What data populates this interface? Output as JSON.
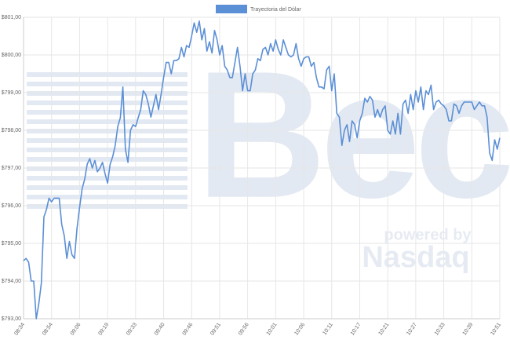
{
  "chart_data": {
    "type": "line",
    "series": [
      {
        "name": "Trayectoria del Dólar",
        "color": "#5b8fd6",
        "values": [
          794.54,
          794.6,
          794.5,
          794.0,
          794.0,
          793.0,
          793.4,
          793.95,
          795.7,
          795.9,
          796.2,
          796.1,
          796.2,
          796.2,
          796.2,
          795.5,
          795.2,
          794.6,
          795.05,
          794.7,
          794.6,
          795.4,
          795.95,
          796.45,
          796.7,
          797.1,
          797.25,
          797.0,
          797.2,
          796.9,
          797.0,
          797.15,
          796.85,
          796.6,
          797.1,
          797.3,
          797.6,
          798.1,
          798.33,
          799.15,
          797.5,
          797.15,
          798.0,
          798.15,
          798.1,
          798.33,
          798.55,
          799.05,
          798.95,
          798.7,
          798.35,
          798.65,
          798.95,
          798.55,
          798.95,
          799.4,
          799.8,
          799.8,
          799.5,
          799.85,
          799.85,
          799.9,
          800.2,
          799.95,
          800.25,
          800.2,
          800.5,
          800.85,
          800.6,
          800.9,
          800.4,
          800.7,
          800.1,
          800.35,
          800.05,
          800.65,
          800.4,
          800.0,
          800.25,
          799.7,
          799.6,
          799.4,
          799.4,
          799.8,
          800.2,
          799.7,
          799.05,
          799.5,
          799.05,
          799.05,
          799.5,
          799.6,
          799.9,
          799.85,
          800.15,
          800.2,
          800.0,
          800.3,
          800.1,
          800.4,
          800.15,
          800.0,
          800.4,
          800.2,
          800.0,
          799.95,
          800.0,
          800.3,
          799.9,
          799.7,
          799.9,
          799.95,
          799.95,
          799.7,
          799.8,
          799.4,
          799.15,
          799.15,
          799.1,
          799.6,
          799.7,
          799.05,
          799.5,
          798.45,
          798.35,
          797.6,
          798.0,
          798.15,
          797.7,
          798.25,
          798.15,
          797.8,
          798.25,
          798.45,
          798.85,
          798.75,
          798.9,
          798.8,
          798.35,
          798.55,
          798.35,
          798.55,
          798.65,
          798.0,
          797.9,
          798.25,
          797.9,
          798.45,
          797.9,
          798.7,
          798.8,
          798.45,
          798.95,
          798.55,
          799.05,
          798.75,
          799.15,
          798.55,
          799.05,
          798.95,
          799.2,
          798.55,
          798.75,
          798.8,
          798.7,
          798.65,
          798.55,
          798.25,
          798.25,
          798.7,
          798.65,
          798.45,
          798.65,
          798.75,
          798.75,
          798.75,
          798.75,
          798.55,
          798.65,
          798.75,
          798.65,
          798.65,
          798.35,
          797.4,
          797.2,
          797.75,
          797.5,
          797.8
        ]
      }
    ],
    "categories": [
      "08:34",
      null,
      null,
      null,
      null,
      null,
      null,
      null,
      null,
      null,
      null,
      "08:54",
      null,
      null,
      null,
      null,
      null,
      null,
      null,
      null,
      null,
      null,
      "09:06",
      null,
      null,
      null,
      null,
      null,
      null,
      null,
      null,
      null,
      null,
      "09:19",
      null,
      null,
      null,
      null,
      null,
      null,
      null,
      null,
      null,
      null,
      "09:33",
      null,
      null,
      null,
      null,
      null,
      null,
      null,
      null,
      null,
      null,
      "09:40",
      null,
      null,
      null,
      null,
      null,
      null,
      null,
      null,
      null,
      null,
      "09:46",
      null,
      null,
      null,
      null,
      null,
      null,
      null,
      null,
      null,
      null,
      "09:51",
      null,
      null,
      null,
      null,
      null,
      null,
      null,
      null,
      null,
      null,
      "09:56",
      null,
      null,
      null,
      null,
      null,
      null,
      null,
      null,
      null,
      null,
      "10:01",
      null,
      null,
      null,
      null,
      null,
      null,
      null,
      null,
      null,
      null,
      "10:06",
      null,
      null,
      null,
      null,
      null,
      null,
      null,
      null,
      null,
      null,
      "10:11",
      null,
      null,
      null,
      null,
      null,
      null,
      null,
      null,
      null,
      null,
      "10:17",
      null,
      null,
      null,
      null,
      null,
      null,
      null,
      null,
      null,
      null,
      "10:21",
      null,
      null,
      null,
      null,
      null,
      null,
      null,
      null,
      null,
      null,
      "10:27",
      null,
      null,
      null,
      null,
      null,
      null,
      null,
      null,
      null,
      null,
      "10:33",
      null,
      null,
      null,
      null,
      null,
      null,
      null,
      null,
      null,
      null,
      "10:39",
      null,
      null,
      null,
      null,
      null,
      null,
      null,
      null,
      null,
      null,
      "10:51"
    ],
    "ylim": [
      793,
      801
    ],
    "yticks": [
      {
        "value": 793,
        "label": "$793,00"
      },
      {
        "value": 794,
        "label": "$794,00"
      },
      {
        "value": 795,
        "label": "$795,00"
      },
      {
        "value": 796,
        "label": "$796,00"
      },
      {
        "value": 797,
        "label": "$797,00"
      },
      {
        "value": 798,
        "label": "$798,00"
      },
      {
        "value": 799,
        "label": "$799,00"
      },
      {
        "value": 800,
        "label": "$800,00"
      },
      {
        "value": 801,
        "label": "$801,00"
      }
    ],
    "grid": true,
    "legend": "top",
    "watermark": {
      "brand": "Bec",
      "tagline": "powered by",
      "partner": "Nasdaq"
    }
  }
}
